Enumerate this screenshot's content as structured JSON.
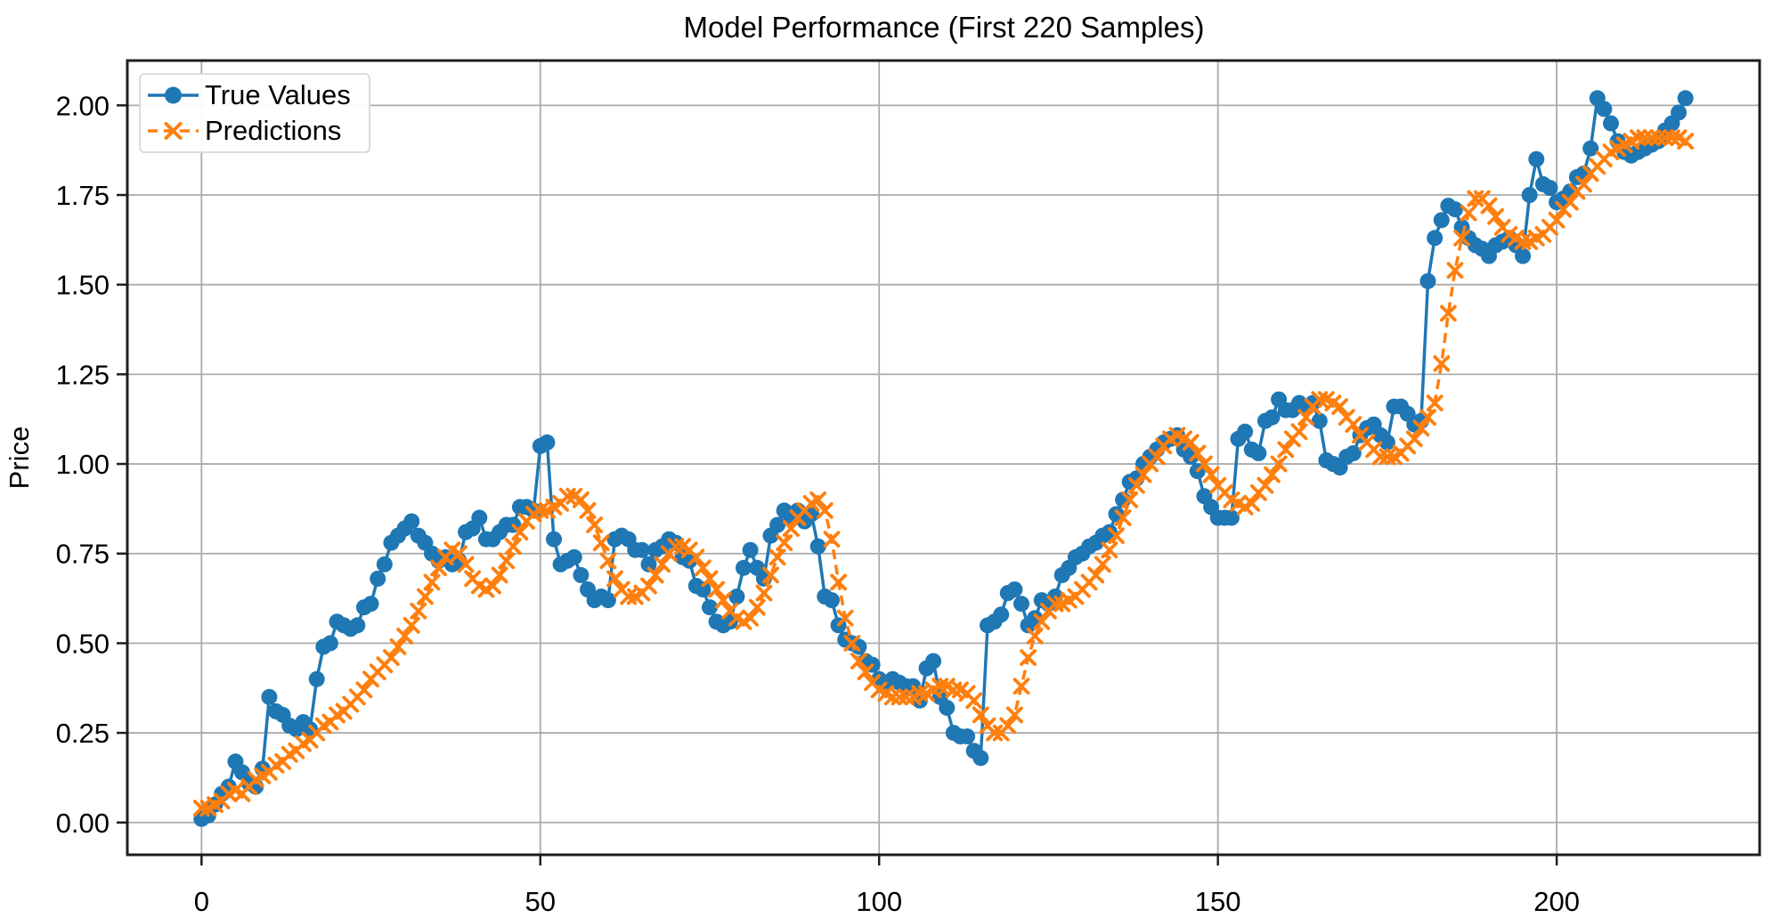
{
  "chart_data": {
    "type": "line",
    "title": "Model Performance (First 220 Samples)",
    "xlabel": "",
    "ylabel": "Price",
    "x_is_index": true,
    "n_samples": 220,
    "xlim": [
      -10.95,
      229.95
    ],
    "ylim": [
      -0.09,
      2.125
    ],
    "xticks": [
      0,
      50,
      100,
      150,
      200
    ],
    "ytick_labels": [
      "0.00",
      "0.25",
      "0.50",
      "0.75",
      "1.00",
      "1.25",
      "1.50",
      "1.75",
      "2.00"
    ],
    "grid": true,
    "legend_position": "upper-left",
    "colors": {
      "true_values": "#1f77b4",
      "predictions": "#ff7f0e",
      "grid": "#ababab",
      "spine": "#1f1f1f",
      "legend_border": "#d4d4d4",
      "background": "#ffffff"
    },
    "series": [
      {
        "name": "True Values",
        "marker": "circle",
        "linestyle": "solid",
        "color": "#1f77b4",
        "values": [
          0.01,
          0.02,
          0.05,
          0.08,
          0.1,
          0.17,
          0.14,
          0.11,
          0.1,
          0.15,
          0.35,
          0.31,
          0.3,
          0.27,
          0.26,
          0.28,
          0.26,
          0.4,
          0.49,
          0.5,
          0.56,
          0.55,
          0.54,
          0.55,
          0.6,
          0.61,
          0.68,
          0.72,
          0.78,
          0.8,
          0.82,
          0.84,
          0.8,
          0.78,
          0.75,
          0.73,
          0.74,
          0.72,
          0.73,
          0.81,
          0.82,
          0.85,
          0.79,
          0.79,
          0.81,
          0.83,
          0.83,
          0.88,
          0.88,
          0.87,
          1.05,
          1.06,
          0.79,
          0.72,
          0.73,
          0.74,
          0.69,
          0.65,
          0.62,
          0.63,
          0.62,
          0.79,
          0.8,
          0.79,
          0.76,
          0.76,
          0.72,
          0.76,
          0.77,
          0.79,
          0.78,
          0.74,
          0.73,
          0.66,
          0.65,
          0.6,
          0.56,
          0.55,
          0.56,
          0.63,
          0.71,
          0.76,
          0.71,
          0.68,
          0.8,
          0.83,
          0.87,
          0.85,
          0.87,
          0.84,
          0.86,
          0.77,
          0.63,
          0.62,
          0.55,
          0.51,
          0.5,
          0.49,
          0.45,
          0.44,
          0.4,
          0.39,
          0.4,
          0.39,
          0.38,
          0.38,
          0.34,
          0.43,
          0.45,
          0.35,
          0.32,
          0.25,
          0.24,
          0.24,
          0.2,
          0.18,
          0.55,
          0.56,
          0.58,
          0.64,
          0.65,
          0.61,
          0.55,
          0.57,
          0.62,
          0.61,
          0.63,
          0.69,
          0.71,
          0.74,
          0.75,
          0.77,
          0.78,
          0.8,
          0.81,
          0.86,
          0.9,
          0.95,
          0.96,
          1.0,
          1.02,
          1.04,
          1.06,
          1.07,
          1.08,
          1.04,
          1.02,
          0.98,
          0.91,
          0.88,
          0.85,
          0.85,
          0.85,
          1.07,
          1.09,
          1.04,
          1.03,
          1.12,
          1.13,
          1.18,
          1.15,
          1.15,
          1.17,
          1.16,
          1.17,
          1.12,
          1.01,
          1.0,
          0.99,
          1.02,
          1.03,
          1.08,
          1.1,
          1.11,
          1.08,
          1.06,
          1.16,
          1.16,
          1.14,
          1.11,
          1.12,
          1.51,
          1.63,
          1.68,
          1.72,
          1.71,
          1.66,
          1.63,
          1.61,
          1.6,
          1.58,
          1.61,
          1.62,
          1.63,
          1.61,
          1.58,
          1.75,
          1.85,
          1.78,
          1.77,
          1.73,
          1.74,
          1.76,
          1.8,
          1.81,
          1.88,
          2.02,
          1.99,
          1.95,
          1.9,
          1.87,
          1.86,
          1.87,
          1.88,
          1.89,
          1.9,
          1.93,
          1.95,
          1.98,
          2.02
        ]
      },
      {
        "name": "Predictions",
        "marker": "x",
        "linestyle": "dashed",
        "color": "#ff7f0e",
        "values": [
          0.04,
          0.04,
          0.05,
          0.06,
          0.08,
          0.09,
          0.08,
          0.1,
          0.12,
          0.13,
          0.14,
          0.16,
          0.17,
          0.19,
          0.2,
          0.22,
          0.23,
          0.25,
          0.27,
          0.28,
          0.3,
          0.31,
          0.33,
          0.35,
          0.37,
          0.4,
          0.42,
          0.44,
          0.46,
          0.49,
          0.52,
          0.55,
          0.59,
          0.63,
          0.67,
          0.71,
          0.74,
          0.76,
          0.75,
          0.72,
          0.68,
          0.66,
          0.65,
          0.66,
          0.69,
          0.73,
          0.77,
          0.81,
          0.84,
          0.86,
          0.87,
          0.87,
          0.88,
          0.89,
          0.91,
          0.91,
          0.9,
          0.87,
          0.83,
          0.78,
          0.73,
          0.68,
          0.65,
          0.63,
          0.63,
          0.64,
          0.66,
          0.69,
          0.72,
          0.75,
          0.77,
          0.77,
          0.76,
          0.74,
          0.71,
          0.68,
          0.65,
          0.62,
          0.59,
          0.57,
          0.56,
          0.57,
          0.6,
          0.64,
          0.69,
          0.74,
          0.78,
          0.82,
          0.85,
          0.87,
          0.89,
          0.9,
          0.87,
          0.79,
          0.67,
          0.57,
          0.5,
          0.45,
          0.42,
          0.39,
          0.37,
          0.36,
          0.35,
          0.35,
          0.35,
          0.35,
          0.36,
          0.36,
          0.37,
          0.38,
          0.38,
          0.37,
          0.37,
          0.36,
          0.34,
          0.3,
          0.27,
          0.25,
          0.25,
          0.27,
          0.3,
          0.38,
          0.46,
          0.52,
          0.56,
          0.59,
          0.61,
          0.61,
          0.62,
          0.63,
          0.65,
          0.67,
          0.69,
          0.72,
          0.76,
          0.8,
          0.85,
          0.9,
          0.94,
          0.97,
          1.0,
          1.02,
          1.05,
          1.07,
          1.08,
          1.07,
          1.06,
          1.03,
          1.0,
          0.97,
          0.94,
          0.92,
          0.9,
          0.89,
          0.88,
          0.89,
          0.92,
          0.94,
          0.97,
          1.0,
          1.04,
          1.07,
          1.09,
          1.13,
          1.16,
          1.18,
          1.18,
          1.17,
          1.16,
          1.13,
          1.11,
          1.08,
          1.06,
          1.04,
          1.02,
          1.02,
          1.02,
          1.03,
          1.05,
          1.07,
          1.1,
          1.13,
          1.17,
          1.28,
          1.42,
          1.54,
          1.63,
          1.7,
          1.74,
          1.74,
          1.72,
          1.69,
          1.66,
          1.64,
          1.63,
          1.62,
          1.62,
          1.63,
          1.64,
          1.66,
          1.68,
          1.71,
          1.73,
          1.76,
          1.78,
          1.81,
          1.83,
          1.85,
          1.87,
          1.88,
          1.89,
          1.9,
          1.91,
          1.91,
          1.91,
          1.91,
          1.91,
          1.91,
          1.91,
          1.9
        ]
      }
    ]
  }
}
